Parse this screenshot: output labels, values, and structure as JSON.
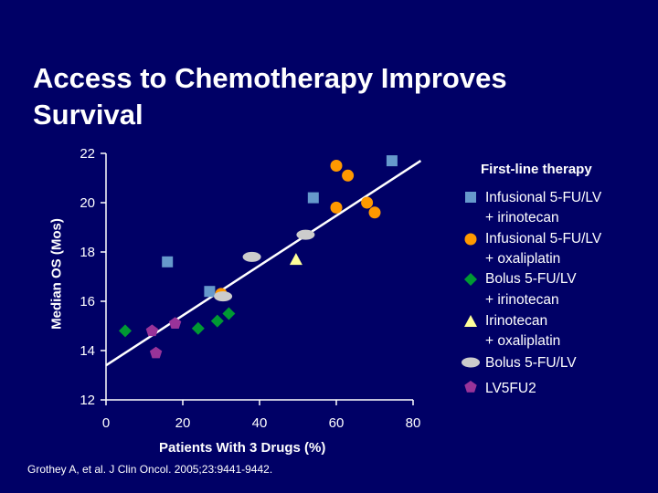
{
  "slide": {
    "title": "Access to Chemotherapy Improves Survival",
    "citation": "Grothey A, et al. J Clin Oncol. 2005;23:9441-9442."
  },
  "colors": {
    "background": "#000066",
    "square": "#6699cc",
    "circle": "#ff9900",
    "diamond": "#009933",
    "triangle": "#ffff99",
    "ellipse": "#cccccc",
    "pentagon": "#993399",
    "axis": "#ffffff"
  },
  "chart_data": {
    "type": "scatter",
    "xlabel": "Patients With 3 Drugs (%)",
    "ylabel": "Median OS (Mos)",
    "xlim": [
      0,
      80
    ],
    "ylim": [
      12,
      22
    ],
    "xticks": [
      0,
      20,
      40,
      60,
      80
    ],
    "yticks": [
      12,
      14,
      16,
      18,
      20,
      22
    ],
    "legend": {
      "title": "First-line therapy",
      "position": "right",
      "entries": [
        {
          "marker": "square",
          "lines": [
            "Infusional 5-FU/LV",
            "+ irinotecan"
          ]
        },
        {
          "marker": "circle",
          "lines": [
            "Infusional 5-FU/LV",
            "+ oxaliplatin"
          ]
        },
        {
          "marker": "diamond",
          "lines": [
            "Bolus 5-FU/LV",
            "+ irinotecan"
          ]
        },
        {
          "marker": "triangle",
          "lines": [
            "Irinotecan",
            "+ oxaliplatin"
          ]
        },
        {
          "marker": "ellipse",
          "lines": [
            "Bolus 5-FU/LV"
          ]
        },
        {
          "marker": "pentagon",
          "lines": [
            "LV5FU2"
          ]
        }
      ]
    },
    "series": [
      {
        "name": "Infusional 5-FU/LV + irinotecan",
        "marker": "square",
        "points": [
          [
            16,
            17.6
          ],
          [
            27,
            16.4
          ],
          [
            54,
            20.2
          ],
          [
            74.5,
            21.7
          ]
        ]
      },
      {
        "name": "Infusional 5-FU/LV + oxaliplatin",
        "marker": "circle",
        "points": [
          [
            30,
            16.3
          ],
          [
            60,
            19.8
          ],
          [
            60,
            21.5
          ],
          [
            63,
            21.1
          ],
          [
            68,
            20.0
          ],
          [
            70,
            19.6
          ]
        ]
      },
      {
        "name": "Bolus 5-FU/LV + irinotecan",
        "marker": "diamond",
        "points": [
          [
            5,
            14.8
          ],
          [
            24,
            14.9
          ],
          [
            29,
            15.2
          ],
          [
            32,
            15.5
          ]
        ]
      },
      {
        "name": "Irinotecan + oxaliplatin",
        "marker": "triangle",
        "points": [
          [
            49.5,
            17.7
          ]
        ]
      },
      {
        "name": "Bolus 5-FU/LV",
        "marker": "ellipse",
        "points": [
          [
            38,
            17.8
          ],
          [
            30.5,
            16.2
          ],
          [
            52,
            18.7
          ]
        ]
      },
      {
        "name": "LV5FU2",
        "marker": "pentagon",
        "points": [
          [
            12,
            14.8
          ],
          [
            18,
            15.1
          ],
          [
            13,
            13.9
          ]
        ]
      }
    ],
    "trendline": {
      "points": [
        [
          0,
          13.4
        ],
        [
          82,
          21.7
        ]
      ]
    }
  }
}
